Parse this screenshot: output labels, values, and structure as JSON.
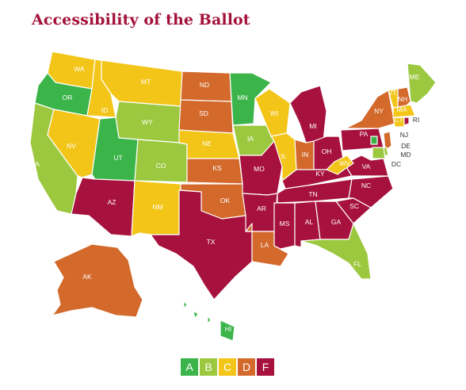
{
  "title": "Accessibility of the Ballot",
  "grade_colors": {
    "A": "#3bb44a",
    "B": "#9cc83f",
    "C": "#f2c518",
    "D": "#d3692b",
    "F": "#a7113d"
  },
  "states": [
    {
      "code": "WA",
      "grade": "C"
    },
    {
      "code": "OR",
      "grade": "A"
    },
    {
      "code": "CA",
      "grade": "B"
    },
    {
      "code": "ID",
      "grade": "C"
    },
    {
      "code": "NV",
      "grade": "C"
    },
    {
      "code": "MT",
      "grade": "C"
    },
    {
      "code": "WY",
      "grade": "B"
    },
    {
      "code": "UT",
      "grade": "A"
    },
    {
      "code": "AZ",
      "grade": "F"
    },
    {
      "code": "CO",
      "grade": "B"
    },
    {
      "code": "NM",
      "grade": "C"
    },
    {
      "code": "ND",
      "grade": "D"
    },
    {
      "code": "SD",
      "grade": "D"
    },
    {
      "code": "NE",
      "grade": "C"
    },
    {
      "code": "KS",
      "grade": "D"
    },
    {
      "code": "OK",
      "grade": "D"
    },
    {
      "code": "TX",
      "grade": "F"
    },
    {
      "code": "MN",
      "grade": "A"
    },
    {
      "code": "IA",
      "grade": "B"
    },
    {
      "code": "MO",
      "grade": "F"
    },
    {
      "code": "AR",
      "grade": "F"
    },
    {
      "code": "LA",
      "grade": "D"
    },
    {
      "code": "WI",
      "grade": "C"
    },
    {
      "code": "IL",
      "grade": "C"
    },
    {
      "code": "MI",
      "grade": "F"
    },
    {
      "code": "IN",
      "grade": "D"
    },
    {
      "code": "OH",
      "grade": "F"
    },
    {
      "code": "KY",
      "grade": "F"
    },
    {
      "code": "TN",
      "grade": "F"
    },
    {
      "code": "MS",
      "grade": "F"
    },
    {
      "code": "AL",
      "grade": "F"
    },
    {
      "code": "GA",
      "grade": "F"
    },
    {
      "code": "FL",
      "grade": "B"
    },
    {
      "code": "SC",
      "grade": "F"
    },
    {
      "code": "NC",
      "grade": "F"
    },
    {
      "code": "VA",
      "grade": "F"
    },
    {
      "code": "WV",
      "grade": "C"
    },
    {
      "code": "PA",
      "grade": "F"
    },
    {
      "code": "NY",
      "grade": "D"
    },
    {
      "code": "ME",
      "grade": "B"
    },
    {
      "code": "VT",
      "grade": "C"
    },
    {
      "code": "NH",
      "grade": "D"
    },
    {
      "code": "MA",
      "grade": "C"
    },
    {
      "code": "CT",
      "grade": "C"
    },
    {
      "code": "RI",
      "grade": "F"
    },
    {
      "code": "NJ",
      "grade": "D"
    },
    {
      "code": "DE",
      "grade": "B"
    },
    {
      "code": "MD",
      "grade": "B"
    },
    {
      "code": "DC",
      "grade": "A"
    },
    {
      "code": "AK",
      "grade": "D"
    },
    {
      "code": "HI",
      "grade": "A"
    }
  ],
  "legend": [
    "A",
    "B",
    "C",
    "D",
    "F"
  ]
}
